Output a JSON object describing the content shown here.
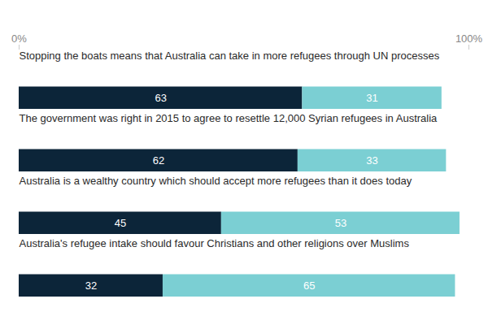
{
  "chart_data": {
    "type": "bar",
    "orientation": "horizontal",
    "stacked": true,
    "data_labels": true,
    "categories": [
      "Stopping the boats means that Australia can take in more refugees through UN processes",
      "The government was right in 2015 to agree to resettle 12,000 Syrian refugees in Australia",
      "Australia is a wealthy country which should accept more refugees than it does today",
      "Australia's refugee intake should favour Christians and other religions over Muslims"
    ],
    "series": [
      {
        "color": "#0c2539",
        "values": [
          63,
          62,
          45,
          32
        ]
      },
      {
        "color": "#7bcfd3",
        "values": [
          31,
          33,
          53,
          65
        ]
      }
    ],
    "xlim": [
      0,
      100
    ],
    "xticks": [
      {
        "value": 0,
        "label": "0%"
      },
      {
        "value": 100,
        "label": "100%"
      }
    ],
    "tick_labels": "x"
  }
}
